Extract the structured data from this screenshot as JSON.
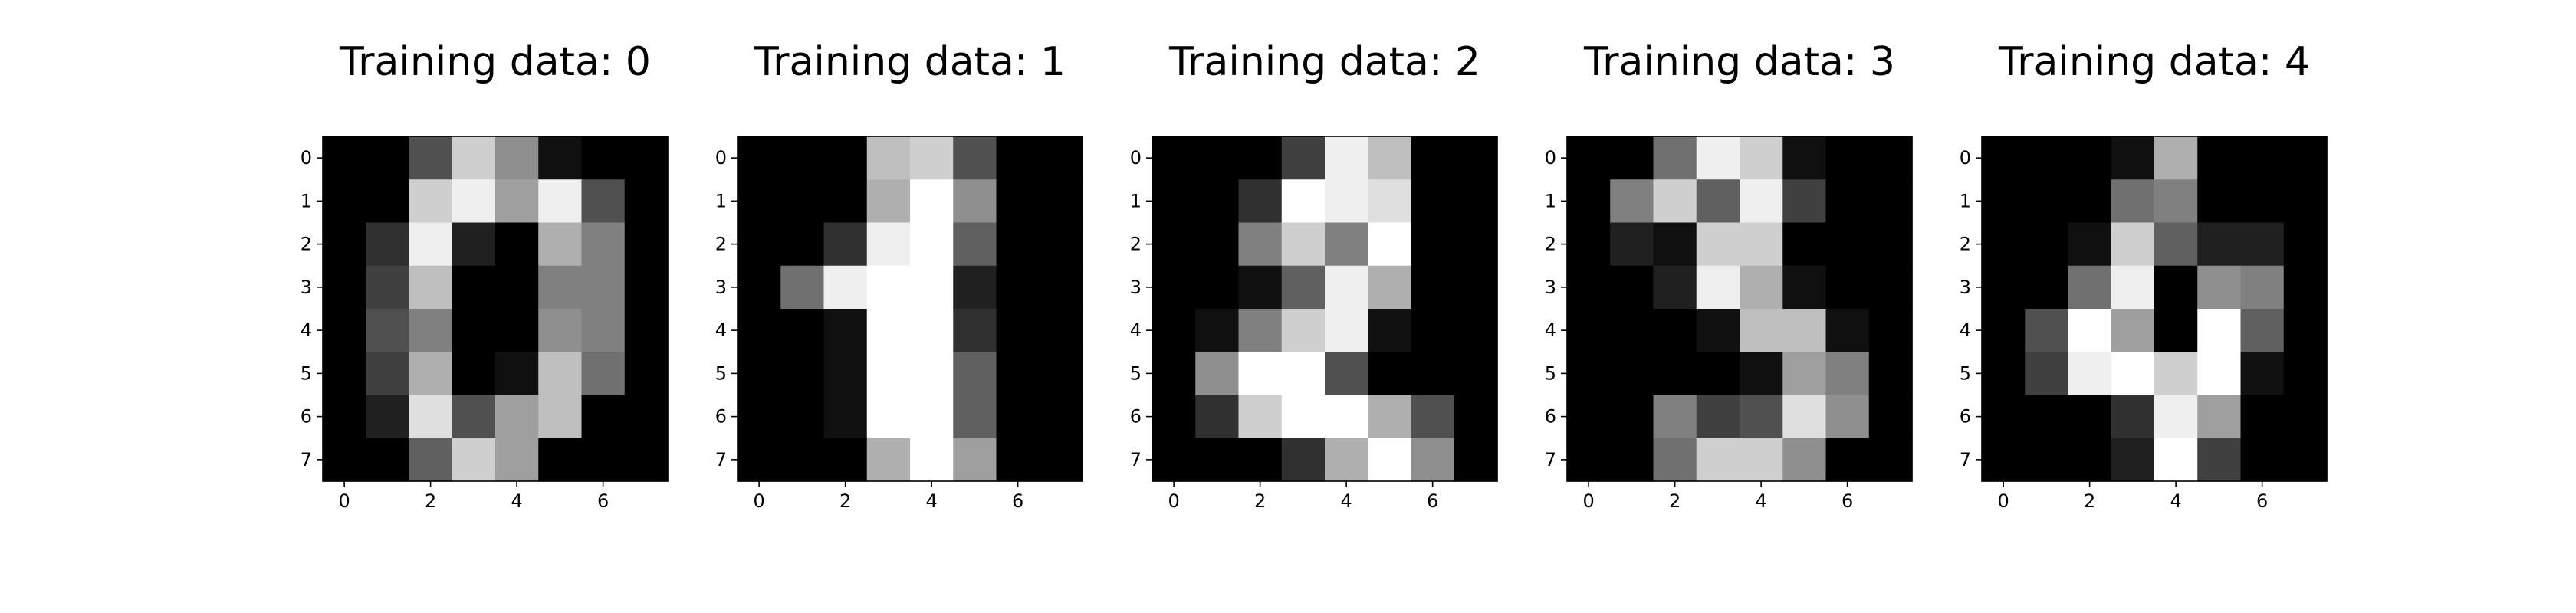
{
  "chart_data": [
    {
      "type": "heatmap",
      "title": "Training data: 0",
      "colormap": "gray",
      "vmin": 0,
      "vmax": 16,
      "xticks": [
        0,
        2,
        4,
        6
      ],
      "yticks": [
        0,
        1,
        2,
        3,
        4,
        5,
        6,
        7
      ],
      "values": [
        [
          0,
          0,
          5,
          13,
          9,
          1,
          0,
          0
        ],
        [
          0,
          0,
          13,
          15,
          10,
          15,
          5,
          0
        ],
        [
          0,
          3,
          15,
          2,
          0,
          11,
          8,
          0
        ],
        [
          0,
          4,
          12,
          0,
          0,
          8,
          8,
          0
        ],
        [
          0,
          5,
          8,
          0,
          0,
          9,
          8,
          0
        ],
        [
          0,
          4,
          11,
          0,
          1,
          12,
          7,
          0
        ],
        [
          0,
          2,
          14,
          5,
          10,
          12,
          0,
          0
        ],
        [
          0,
          0,
          6,
          13,
          10,
          0,
          0,
          0
        ]
      ]
    },
    {
      "type": "heatmap",
      "title": "Training data: 1",
      "colormap": "gray",
      "vmin": 0,
      "vmax": 16,
      "xticks": [
        0,
        2,
        4,
        6
      ],
      "yticks": [
        0,
        1,
        2,
        3,
        4,
        5,
        6,
        7
      ],
      "values": [
        [
          0,
          0,
          0,
          12,
          13,
          5,
          0,
          0
        ],
        [
          0,
          0,
          0,
          11,
          16,
          9,
          0,
          0
        ],
        [
          0,
          0,
          3,
          15,
          16,
          6,
          0,
          0
        ],
        [
          0,
          7,
          15,
          16,
          16,
          2,
          0,
          0
        ],
        [
          0,
          0,
          1,
          16,
          16,
          3,
          0,
          0
        ],
        [
          0,
          0,
          1,
          16,
          16,
          6,
          0,
          0
        ],
        [
          0,
          0,
          1,
          16,
          16,
          6,
          0,
          0
        ],
        [
          0,
          0,
          0,
          11,
          16,
          10,
          0,
          0
        ]
      ]
    },
    {
      "type": "heatmap",
      "title": "Training data: 2",
      "colormap": "gray",
      "vmin": 0,
      "vmax": 16,
      "xticks": [
        0,
        2,
        4,
        6
      ],
      "yticks": [
        0,
        1,
        2,
        3,
        4,
        5,
        6,
        7
      ],
      "values": [
        [
          0,
          0,
          0,
          4,
          15,
          12,
          0,
          0
        ],
        [
          0,
          0,
          3,
          16,
          15,
          14,
          0,
          0
        ],
        [
          0,
          0,
          8,
          13,
          8,
          16,
          0,
          0
        ],
        [
          0,
          0,
          1,
          6,
          15,
          11,
          0,
          0
        ],
        [
          0,
          1,
          8,
          13,
          15,
          1,
          0,
          0
        ],
        [
          0,
          9,
          16,
          16,
          5,
          0,
          0,
          0
        ],
        [
          0,
          3,
          13,
          16,
          16,
          11,
          5,
          0
        ],
        [
          0,
          0,
          0,
          3,
          11,
          16,
          9,
          0
        ]
      ]
    },
    {
      "type": "heatmap",
      "title": "Training data: 3",
      "colormap": "gray",
      "vmin": 0,
      "vmax": 16,
      "xticks": [
        0,
        2,
        4,
        6
      ],
      "yticks": [
        0,
        1,
        2,
        3,
        4,
        5,
        6,
        7
      ],
      "values": [
        [
          0,
          0,
          7,
          15,
          13,
          1,
          0,
          0
        ],
        [
          0,
          8,
          13,
          6,
          15,
          4,
          0,
          0
        ],
        [
          0,
          2,
          1,
          13,
          13,
          0,
          0,
          0
        ],
        [
          0,
          0,
          2,
          15,
          11,
          1,
          0,
          0
        ],
        [
          0,
          0,
          0,
          1,
          12,
          12,
          1,
          0
        ],
        [
          0,
          0,
          0,
          0,
          1,
          10,
          8,
          0
        ],
        [
          0,
          0,
          8,
          4,
          5,
          14,
          9,
          0
        ],
        [
          0,
          0,
          7,
          13,
          13,
          9,
          0,
          0
        ]
      ]
    },
    {
      "type": "heatmap",
      "title": "Training data: 4",
      "colormap": "gray",
      "vmin": 0,
      "vmax": 16,
      "xticks": [
        0,
        2,
        4,
        6
      ],
      "yticks": [
        0,
        1,
        2,
        3,
        4,
        5,
        6,
        7
      ],
      "values": [
        [
          0,
          0,
          0,
          1,
          11,
          0,
          0,
          0
        ],
        [
          0,
          0,
          0,
          7,
          8,
          0,
          0,
          0
        ],
        [
          0,
          0,
          1,
          13,
          6,
          2,
          2,
          0
        ],
        [
          0,
          0,
          7,
          15,
          0,
          9,
          8,
          0
        ],
        [
          0,
          5,
          16,
          10,
          0,
          16,
          6,
          0
        ],
        [
          0,
          4,
          15,
          16,
          13,
          16,
          1,
          0
        ],
        [
          0,
          0,
          0,
          3,
          15,
          10,
          0,
          0
        ],
        [
          0,
          0,
          0,
          2,
          16,
          4,
          0,
          0
        ]
      ]
    }
  ]
}
